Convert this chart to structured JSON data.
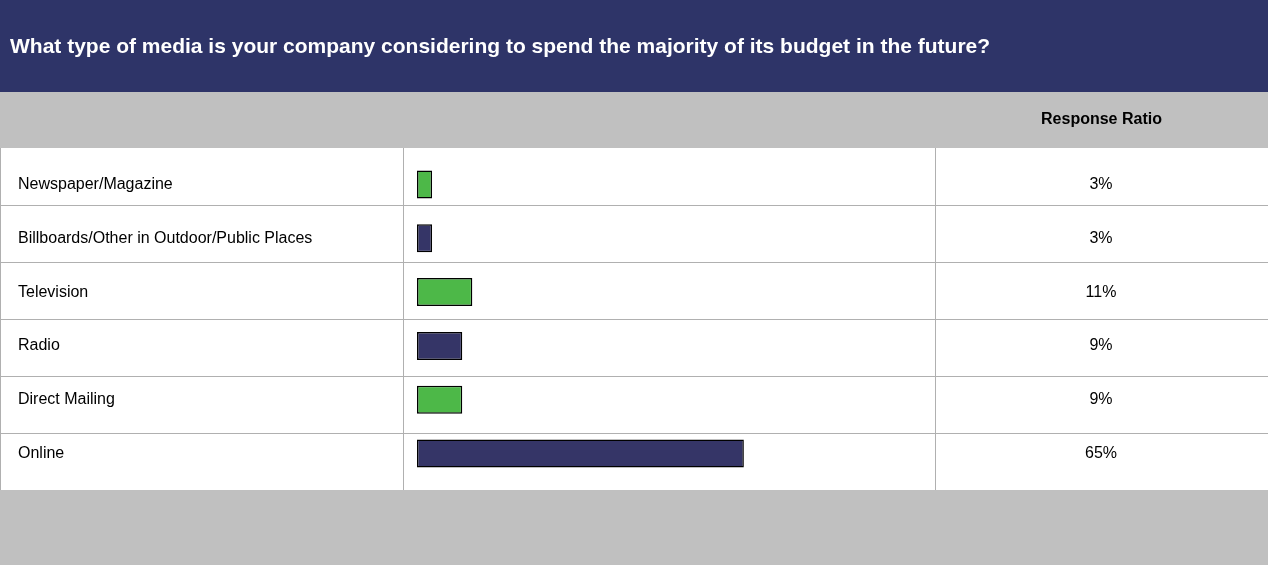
{
  "chart_data": {
    "type": "bar",
    "orientation": "horizontal",
    "title": "What type of media is your company considering to spend the majority of its budget in the future?",
    "annotations": [
      "Response Ratio"
    ],
    "categories": [
      "Newspaper/Magazine",
      "Billboards/Other in Outdoor/Public Places",
      "Television",
      "Radio",
      "Direct Mailing",
      "Online"
    ],
    "values": [
      3,
      3,
      11,
      9,
      9,
      65
    ],
    "colors": [
      "#4db848",
      "#353567",
      "#4db848",
      "#353567",
      "#4db848",
      "#353567"
    ],
    "value_labels": [
      "3%",
      "3%",
      "11%",
      "9%",
      "9%",
      "65%"
    ],
    "tick_labels": "y",
    "legend": false
  }
}
